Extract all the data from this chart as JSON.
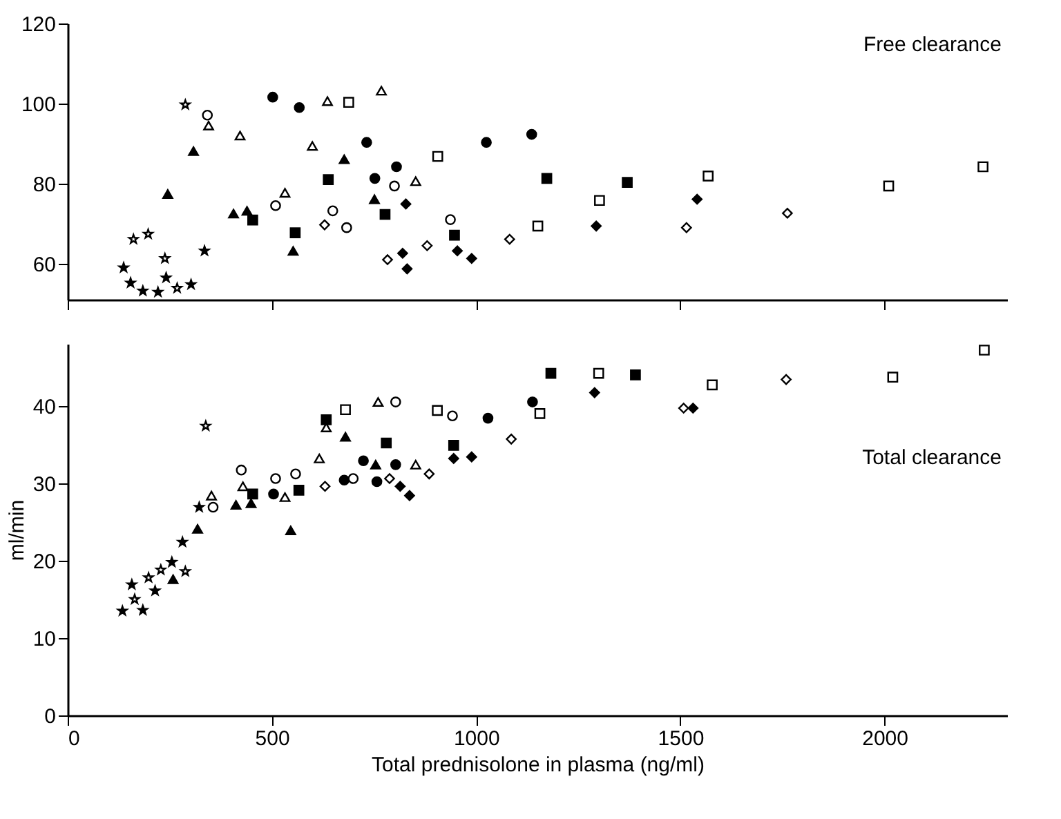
{
  "chart_data": [
    {
      "type": "scatter",
      "xlim": [
        0,
        2300
      ],
      "xticks": [
        0,
        500,
        1000,
        1500,
        2000
      ],
      "ylim": [
        51,
        120
      ],
      "yticks": [
        60,
        80,
        100,
        120
      ],
      "tick_labels": "y",
      "annotations": [
        "Free clearance"
      ],
      "series": [
        {
          "marker": "star",
          "color": "#000000",
          "x": [
            137,
            154,
            184,
            221,
            241,
            302,
            335
          ],
          "values": [
            59,
            55.2,
            53.2,
            52.9,
            56.5,
            54.8,
            63.2
          ]
        },
        {
          "marker": "star",
          "color": "#ffffff",
          "x": [
            161,
            197,
            238,
            268,
            288
          ],
          "values": [
            66.1,
            67.4,
            61.3,
            53.9,
            99.7
          ]
        },
        {
          "marker": "circle",
          "color": "#000000",
          "x": [
            502,
            567,
            732,
            752,
            805,
            1025,
            1136
          ],
          "values": [
            101.6,
            99,
            90.3,
            81.3,
            84.2,
            90.3,
            92.3
          ]
        },
        {
          "marker": "circle",
          "color": "#ffffff",
          "x": [
            342,
            509,
            649,
            683,
            800,
            937
          ],
          "values": [
            97.1,
            74.5,
            73.2,
            69,
            79.4,
            71
          ]
        },
        {
          "marker": "triangle",
          "color": "#000000",
          "x": [
            245,
            308,
            406,
            439,
            552,
            677,
            751
          ],
          "values": [
            77.4,
            88.1,
            72.5,
            73.2,
            63.2,
            86.1,
            76.1
          ]
        },
        {
          "marker": "triangle",
          "color": "#ffffff",
          "x": [
            345,
            422,
            532,
            599,
            636,
            768,
            852
          ],
          "values": [
            94.5,
            92,
            77.7,
            89.4,
            100.6,
            103.2,
            80.6
          ]
        },
        {
          "marker": "square",
          "color": "#000000",
          "x": [
            453,
            557,
            638,
            777,
            947,
            1173,
            1370
          ],
          "values": [
            70.9,
            67.7,
            81,
            72.3,
            67.1,
            81.3,
            80.3
          ]
        },
        {
          "marker": "square",
          "color": "#ffffff",
          "x": [
            688,
            906,
            1151,
            1302,
            1568,
            2010,
            2241
          ],
          "values": [
            100.3,
            86.8,
            69.4,
            75.8,
            81.9,
            79.4,
            84.2
          ]
        },
        {
          "marker": "diamond",
          "color": "#000000",
          "x": [
            828,
            820,
            831,
            954,
            989,
            1294,
            1541
          ],
          "values": [
            74.9,
            62.6,
            58.7,
            63.2,
            61.3,
            69.4,
            76.1
          ]
        },
        {
          "marker": "diamond",
          "color": "#ffffff",
          "x": [
            629,
            783,
            880,
            1082,
            1515,
            1762
          ],
          "values": [
            69.7,
            61,
            64.5,
            66.1,
            69,
            72.6
          ]
        }
      ]
    },
    {
      "type": "scatter",
      "xlabel": "Total prednisolone in plasma (ng/ml)",
      "ylabel": "ml/min",
      "xlim": [
        0,
        2300
      ],
      "xticks": [
        0,
        500,
        1000,
        1500,
        2000
      ],
      "ylim": [
        0,
        48
      ],
      "yticks": [
        0,
        10,
        20,
        30,
        40
      ],
      "annotations": [
        "Total clearance"
      ],
      "series": [
        {
          "marker": "star",
          "color": "#000000",
          "x": [
            134,
            157,
            184,
            214,
            255,
            281,
            322
          ],
          "values": [
            13.5,
            16.9,
            13.6,
            16.1,
            19.8,
            22.4,
            26.9
          ]
        },
        {
          "marker": "star",
          "color": "#ffffff",
          "x": [
            164,
            198,
            228,
            288,
            338
          ],
          "values": [
            15,
            17.8,
            18.8,
            18.6,
            37.4
          ]
        },
        {
          "marker": "circle",
          "color": "#000000",
          "x": [
            504,
            677,
            724,
            757,
            803,
            1029,
            1138
          ],
          "values": [
            28.6,
            30.4,
            32.9,
            30.2,
            32.4,
            38.4,
            40.5
          ]
        },
        {
          "marker": "circle",
          "color": "#ffffff",
          "x": [
            356,
            425,
            509,
            558,
            699,
            803,
            942
          ],
          "values": [
            26.9,
            31.7,
            30.6,
            31.2,
            30.6,
            40.5,
            38.7
          ]
        },
        {
          "marker": "triangle",
          "color": "#000000",
          "x": [
            258,
            318,
            412,
            449,
            546,
            680,
            754
          ],
          "values": [
            17.6,
            24.1,
            27.2,
            27.4,
            23.9,
            36,
            32.4
          ]
        },
        {
          "marker": "triangle",
          "color": "#ffffff",
          "x": [
            352,
            429,
            532,
            616,
            633,
            760,
            852
          ],
          "values": [
            28.4,
            29.6,
            28.2,
            33.2,
            37.2,
            40.5,
            32.4
          ]
        },
        {
          "marker": "square",
          "color": "#000000",
          "x": [
            453,
            566,
            633,
            780,
            945,
            1183,
            1390
          ],
          "values": [
            28.6,
            29.1,
            38.2,
            35.2,
            34.9,
            44.2,
            44
          ]
        },
        {
          "marker": "square",
          "color": "#ffffff",
          "x": [
            680,
            905,
            1156,
            1300,
            1578,
            2020,
            2244
          ],
          "values": [
            39.5,
            39.4,
            39,
            44.2,
            42.7,
            43.7,
            47.2
          ]
        },
        {
          "marker": "diamond",
          "color": "#000000",
          "x": [
            814,
            837,
            945,
            989,
            1290,
            1531
          ],
          "values": [
            29.6,
            28.4,
            33.2,
            33.4,
            41.7,
            39.7
          ]
        },
        {
          "marker": "diamond",
          "color": "#ffffff",
          "x": [
            630,
            788,
            885,
            1086,
            1508,
            1759
          ],
          "values": [
            29.6,
            30.6,
            31.2,
            35.7,
            39.7,
            43.4
          ]
        }
      ]
    }
  ]
}
